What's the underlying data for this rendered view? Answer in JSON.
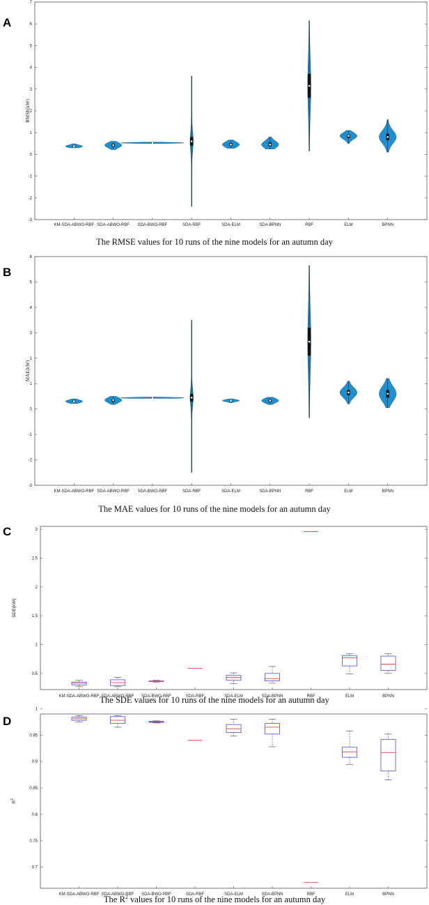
{
  "chart_data": [
    {
      "panel_label": "A",
      "type": "violin",
      "ylabel": "RMSE(kW)",
      "ylim": [
        -3,
        7
      ],
      "yticks": [
        -3,
        -2,
        -1,
        0,
        1,
        2,
        3,
        4,
        5,
        6,
        7
      ],
      "caption": "The RMSE values for 10 runs of the nine models for an autumn day",
      "categories": [
        "KM-SDA-ABWO-RBF",
        "SDA-ABWO-RBF",
        "SDA-BWO-RBF",
        "SDA-RBF",
        "SDA-ELM",
        "SDA-BPNN",
        "RBF",
        "ELM",
        "BPNN"
      ],
      "violins": [
        {
          "min": 0.3,
          "max": 0.48,
          "median": 0.37,
          "q1": 0.34,
          "q3": 0.4
        },
        {
          "min": 0.22,
          "max": 0.6,
          "median": 0.42,
          "q1": 0.36,
          "q3": 0.48
        },
        {
          "min": 0.5,
          "max": 0.56,
          "median": 0.53,
          "q1": 0.52,
          "q3": 0.54
        },
        {
          "min": -2.4,
          "max": 3.6,
          "median": 0.6,
          "q1": 0.4,
          "q3": 0.8
        },
        {
          "min": 0.28,
          "max": 0.66,
          "median": 0.45,
          "q1": 0.39,
          "q3": 0.52
        },
        {
          "min": 0.25,
          "max": 0.8,
          "median": 0.45,
          "q1": 0.38,
          "q3": 0.55
        },
        {
          "min": 0.15,
          "max": 6.15,
          "median": 3.15,
          "q1": 2.6,
          "q3": 3.7
        },
        {
          "min": 0.5,
          "max": 1.1,
          "median": 0.85,
          "q1": 0.75,
          "q3": 0.9
        },
        {
          "min": 0.1,
          "max": 1.6,
          "median": 0.8,
          "q1": 0.65,
          "q3": 0.95
        }
      ]
    },
    {
      "panel_label": "B",
      "type": "violin",
      "ylabel": "MAE(kW)",
      "ylim": [
        -3,
        6
      ],
      "yticks": [
        -3,
        -2,
        -1,
        0,
        1,
        2,
        3,
        4,
        5,
        6
      ],
      "caption": "The MAE values for 10 runs of the nine models for an autumn day",
      "categories": [
        "KM-SDA-ABWO-RBF",
        "SDA-ABWO-RBF",
        "SDA-BWO-RBF",
        "SDA-RBF",
        "SDA-ELM",
        "SDA-BPNN",
        "RBF",
        "ELM",
        "BPNN"
      ],
      "violins": [
        {
          "min": 0.22,
          "max": 0.4,
          "median": 0.3,
          "q1": 0.27,
          "q3": 0.33
        },
        {
          "min": 0.18,
          "max": 0.5,
          "median": 0.35,
          "q1": 0.29,
          "q3": 0.39
        },
        {
          "min": 0.42,
          "max": 0.47,
          "median": 0.44,
          "q1": 0.43,
          "q3": 0.45
        },
        {
          "min": -2.5,
          "max": 3.5,
          "median": 0.45,
          "q1": 0.3,
          "q3": 0.6
        },
        {
          "min": 0.25,
          "max": 0.4,
          "median": 0.33,
          "q1": 0.31,
          "q3": 0.35
        },
        {
          "min": 0.18,
          "max": 0.46,
          "median": 0.33,
          "q1": 0.28,
          "q3": 0.37
        },
        {
          "min": -0.35,
          "max": 5.65,
          "median": 2.65,
          "q1": 2.1,
          "q3": 3.2
        },
        {
          "min": 0.2,
          "max": 1.1,
          "median": 0.65,
          "q1": 0.55,
          "q3": 0.75
        },
        {
          "min": 0.05,
          "max": 1.2,
          "median": 0.6,
          "q1": 0.45,
          "q3": 0.75
        }
      ]
    },
    {
      "panel_label": "C",
      "type": "box",
      "ylabel": "SDE(kW)",
      "ylim": [
        0.22,
        3.05
      ],
      "yticks": [
        0.5,
        1,
        1.5,
        2,
        2.5,
        3
      ],
      "ytick_labels": [
        "0.5",
        "1",
        "1.5",
        "2",
        "2.5",
        "3"
      ],
      "caption": "The SDE values for 10 runs of the nine models for an autumn day",
      "categories": [
        "KM-SDA-ABWO-RBF",
        "SDA-ABWO-RBF",
        "SDA-BWO-RBF",
        "SDA-RBF",
        "SDA-ELM",
        "SDA-BPNN",
        "RBF",
        "ELM",
        "BPNN"
      ],
      "boxes": [
        {
          "min": 0.27,
          "q1": 0.3,
          "median": 0.33,
          "q3": 0.35,
          "max": 0.38
        },
        {
          "min": 0.27,
          "q1": 0.29,
          "median": 0.34,
          "q3": 0.39,
          "max": 0.43
        },
        {
          "min": 0.35,
          "q1": 0.36,
          "median": 0.365,
          "q3": 0.37,
          "max": 0.38
        },
        {
          "min": 0.59,
          "q1": 0.59,
          "median": 0.59,
          "q3": 0.59,
          "max": 0.59
        },
        {
          "min": 0.32,
          "q1": 0.38,
          "median": 0.43,
          "q3": 0.47,
          "max": 0.51
        },
        {
          "min": 0.33,
          "q1": 0.37,
          "median": 0.41,
          "q3": 0.5,
          "max": 0.62
        },
        {
          "min": 2.96,
          "q1": 2.96,
          "median": 2.96,
          "q3": 2.96,
          "max": 2.96
        },
        {
          "min": 0.49,
          "q1": 0.63,
          "median": 0.77,
          "q3": 0.81,
          "max": 0.84
        },
        {
          "min": 0.5,
          "q1": 0.55,
          "median": 0.66,
          "q3": 0.8,
          "max": 0.84
        }
      ]
    },
    {
      "panel_label": "D",
      "type": "box",
      "ylabel": "R",
      "ylabel_sup": "2",
      "ylim": [
        0.66,
        0.99
      ],
      "yticks": [
        0.7,
        0.75,
        0.8,
        0.85,
        0.9,
        0.95,
        1
      ],
      "ytick_labels": [
        "0.7",
        "0.75",
        "0.8",
        "0.85",
        "0.9",
        "0.95",
        "1"
      ],
      "caption_before": "The R",
      "caption_sup": "2",
      "caption_after": " values for 10 runs of the nine models for an autumn day",
      "categories": [
        "KM-SDA-ABWO-RBF",
        "SDA-ABWO-RBF",
        "SDA-BWO-RBF",
        "SDA-RBF",
        "SDA-ELM",
        "SDA-BPNN",
        "RBF",
        "ELM",
        "BPNN"
      ],
      "boxes": [
        {
          "min": 0.975,
          "q1": 0.978,
          "median": 0.981,
          "q3": 0.984,
          "max": 0.987
        },
        {
          "min": 0.965,
          "q1": 0.972,
          "median": 0.978,
          "q3": 0.985,
          "max": 0.987
        },
        {
          "min": 0.973,
          "q1": 0.974,
          "median": 0.975,
          "q3": 0.976,
          "max": 0.977
        },
        {
          "min": 0.94,
          "q1": 0.94,
          "median": 0.94,
          "q3": 0.94,
          "max": 0.94
        },
        {
          "min": 0.948,
          "q1": 0.955,
          "median": 0.962,
          "q3": 0.97,
          "max": 0.98
        },
        {
          "min": 0.928,
          "q1": 0.952,
          "median": 0.965,
          "q3": 0.972,
          "max": 0.98
        },
        {
          "min": 0.671,
          "q1": 0.671,
          "median": 0.671,
          "q3": 0.671,
          "max": 0.671
        },
        {
          "min": 0.894,
          "q1": 0.908,
          "median": 0.918,
          "q3": 0.927,
          "max": 0.958
        },
        {
          "min": 0.865,
          "q1": 0.882,
          "median": 0.917,
          "q3": 0.942,
          "max": 0.952
        }
      ]
    }
  ],
  "colors": {
    "violin_fill": "#1E8FD0",
    "violin_edge": "#0c4f7a",
    "box_edge": "#4A4AE0",
    "median": "#E04040",
    "whisker": "#444444",
    "axis": "#555555"
  }
}
